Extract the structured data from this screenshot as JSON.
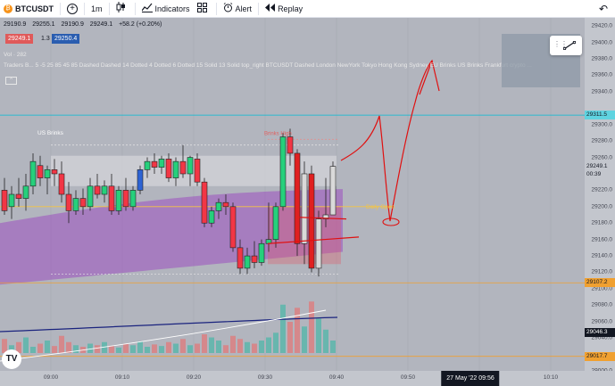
{
  "toolbar": {
    "symbol": "BTCUSDT",
    "timeframe": "1m",
    "indicators_label": "Indicators",
    "alert_label": "Alert",
    "replay_label": "Replay"
  },
  "legend": {
    "open": "29190.9",
    "high": "29255.1",
    "low": "29190.9",
    "close": "29249.1",
    "change": "+58.2 (+0.20%)",
    "sell_price": "29249.1",
    "multiplier": "1.3",
    "buy_price": "29250.4",
    "volume_label": "Vol · 282",
    "indicators_text": "Traders B... 5 -5 25 85 45 85 Dashed Dashed 14 Dotted 4 Dotted 6 Dotted 15 Solid 13 Solid top_right BTCUSDT Dashed London NewYork Tokyo Hong Kong Sydney EU Brinks US Brinks Frankfurt crypto ...",
    "collapse_label": "^"
  },
  "annotations": {
    "us_brinks": "US Brinks",
    "brinks_high": "Brinks High",
    "daily_open": "Daily Open"
  },
  "price_scale": {
    "ticks": [
      "29420.0",
      "29400.0",
      "29380.0",
      "29360.0",
      "29340.0",
      "29300.0",
      "29280.0",
      "29260.0",
      "29240.0",
      "29220.0",
      "29200.0",
      "29180.0",
      "29160.0",
      "29140.0",
      "29120.0",
      "29100.0",
      "29080.0",
      "29060.0",
      "29040.0",
      "29020.0",
      "29000.0"
    ],
    "level_upper": "29311.5",
    "current_price": "29249.1",
    "countdown": "00:39",
    "level_lower_1": "29107.2",
    "mid_value": "29046.3",
    "level_lower_2": "29017.7"
  },
  "time_scale": {
    "ticks": [
      "09:00",
      "09:10",
      "09:20",
      "09:30",
      "09:40",
      "09:50",
      "10:00",
      "10:10"
    ],
    "crosshair": "27 May '22   09:56"
  },
  "colors": {
    "chart_bg": "#b2b5be",
    "bull": "#26d07c",
    "bear": "#f23645",
    "purple_band": "#9c4fbf",
    "drawing": "#e01010",
    "level_line": "#f0a030",
    "cyan_line": "#00bcd4"
  },
  "chart_data": {
    "type": "candlestick",
    "symbol": "BTCUSDT",
    "interval": "1m",
    "ylim": [
      29000,
      29430
    ],
    "candles": [
      {
        "o": 29220,
        "h": 29235,
        "l": 29190,
        "c": 29195
      },
      {
        "o": 29200,
        "h": 29225,
        "l": 29185,
        "c": 29215
      },
      {
        "o": 29215,
        "h": 29235,
        "l": 29200,
        "c": 29210
      },
      {
        "o": 29210,
        "h": 29240,
        "l": 29195,
        "c": 29225
      },
      {
        "o": 29225,
        "h": 29265,
        "l": 29215,
        "c": 29255
      },
      {
        "o": 29250,
        "h": 29262,
        "l": 29225,
        "c": 29235
      },
      {
        "o": 29235,
        "h": 29250,
        "l": 29215,
        "c": 29245
      },
      {
        "o": 29245,
        "h": 29258,
        "l": 29225,
        "c": 29240
      },
      {
        "o": 29240,
        "h": 29255,
        "l": 29205,
        "c": 29215
      },
      {
        "o": 29215,
        "h": 29230,
        "l": 29180,
        "c": 29195
      },
      {
        "o": 29195,
        "h": 29220,
        "l": 29190,
        "c": 29210
      },
      {
        "o": 29210,
        "h": 29222,
        "l": 29190,
        "c": 29200
      },
      {
        "o": 29200,
        "h": 29235,
        "l": 29195,
        "c": 29225
      },
      {
        "o": 29225,
        "h": 29240,
        "l": 29210,
        "c": 29215
      },
      {
        "o": 29215,
        "h": 29232,
        "l": 29205,
        "c": 29225
      },
      {
        "o": 29225,
        "h": 29240,
        "l": 29190,
        "c": 29195
      },
      {
        "o": 29195,
        "h": 29225,
        "l": 29190,
        "c": 29220
      },
      {
        "o": 29220,
        "h": 29235,
        "l": 29195,
        "c": 29200
      },
      {
        "o": 29200,
        "h": 29225,
        "l": 29195,
        "c": 29220
      },
      {
        "o": 29220,
        "h": 29250,
        "l": 29215,
        "c": 29245
      },
      {
        "o": 29245,
        "h": 29260,
        "l": 29235,
        "c": 29255
      },
      {
        "o": 29255,
        "h": 29265,
        "l": 29240,
        "c": 29248
      },
      {
        "o": 29248,
        "h": 29262,
        "l": 29240,
        "c": 29258
      },
      {
        "o": 29258,
        "h": 29265,
        "l": 29230,
        "c": 29235
      },
      {
        "o": 29235,
        "h": 29260,
        "l": 29225,
        "c": 29255
      },
      {
        "o": 29255,
        "h": 29275,
        "l": 29235,
        "c": 29240
      },
      {
        "o": 29240,
        "h": 29262,
        "l": 29225,
        "c": 29260
      },
      {
        "o": 29258,
        "h": 29265,
        "l": 29225,
        "c": 29230
      },
      {
        "o": 29230,
        "h": 29235,
        "l": 29175,
        "c": 29180
      },
      {
        "o": 29180,
        "h": 29200,
        "l": 29175,
        "c": 29195
      },
      {
        "o": 29195,
        "h": 29210,
        "l": 29185,
        "c": 29205
      },
      {
        "o": 29205,
        "h": 29215,
        "l": 29190,
        "c": 29200
      },
      {
        "o": 29200,
        "h": 29205,
        "l": 29145,
        "c": 29150
      },
      {
        "o": 29150,
        "h": 29160,
        "l": 29118,
        "c": 29125
      },
      {
        "o": 29125,
        "h": 29150,
        "l": 29118,
        "c": 29140
      },
      {
        "o": 29140,
        "h": 29158,
        "l": 29125,
        "c": 29132
      },
      {
        "o": 29132,
        "h": 29160,
        "l": 29128,
        "c": 29155
      },
      {
        "o": 29155,
        "h": 29205,
        "l": 29145,
        "c": 29160
      },
      {
        "o": 29160,
        "h": 29205,
        "l": 29150,
        "c": 29200
      },
      {
        "o": 29200,
        "h": 29290,
        "l": 29195,
        "c": 29285
      },
      {
        "o": 29285,
        "h": 29295,
        "l": 29250,
        "c": 29265
      },
      {
        "o": 29265,
        "h": 29270,
        "l": 29140,
        "c": 29155
      },
      {
        "o": 29155,
        "h": 29255,
        "l": 29130,
        "c": 29240
      },
      {
        "o": 29240,
        "h": 29250,
        "l": 29120,
        "c": 29125
      },
      {
        "o": 29125,
        "h": 29195,
        "l": 29115,
        "c": 29185
      },
      {
        "o": 29185,
        "h": 29235,
        "l": 29175,
        "c": 29190
      },
      {
        "o": 29190,
        "h": 29255,
        "l": 29190,
        "c": 29249
      }
    ],
    "volume": [
      18,
      10,
      14,
      20,
      8,
      12,
      16,
      9,
      22,
      14,
      10,
      8,
      12,
      10,
      14,
      9,
      7,
      12,
      10,
      15,
      8,
      11,
      9,
      14,
      12,
      18,
      10,
      12,
      24,
      20,
      16,
      10,
      22,
      18,
      14,
      12,
      16,
      20,
      26,
      62,
      40,
      58,
      34,
      66,
      44,
      30,
      16
    ],
    "levels": [
      29311.5,
      29107.2,
      29017.7
    ],
    "x_ticks": [
      "09:00",
      "09:10",
      "09:20",
      "09:30",
      "09:40",
      "09:50",
      "10:00",
      "10:10"
    ]
  }
}
